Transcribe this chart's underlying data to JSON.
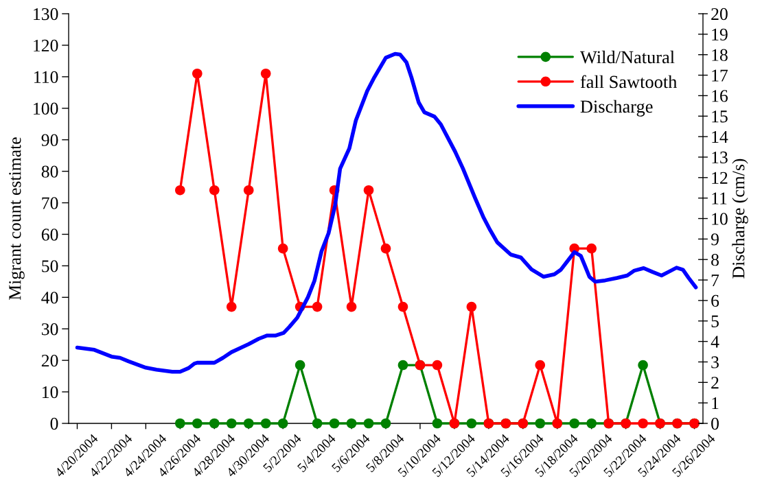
{
  "chart_data": {
    "type": "line",
    "ylabel": "Migrant count estimate",
    "y2label": "Discharge (cm/s)",
    "xlim": [
      "2004-04-19T12:00",
      "2004-05-26T12:00"
    ],
    "xticks": [
      {
        "value": "2004-04-20",
        "label": "4/20/2004"
      },
      {
        "value": "2004-04-22",
        "label": "4/22/2004"
      },
      {
        "value": "2004-04-24",
        "label": "4/24/2004"
      },
      {
        "value": "2004-04-26",
        "label": "4/26/2004"
      },
      {
        "value": "2004-04-28",
        "label": "4/28/2004"
      },
      {
        "value": "2004-04-30",
        "label": "4/30/2004"
      },
      {
        "value": "2004-05-02",
        "label": "5/2/2004"
      },
      {
        "value": "2004-05-04",
        "label": "5/4/2004"
      },
      {
        "value": "2004-05-06",
        "label": "5/6/2004"
      },
      {
        "value": "2004-05-08",
        "label": "5/8/2004"
      },
      {
        "value": "2004-05-10",
        "label": "5/10/2004"
      },
      {
        "value": "2004-05-12",
        "label": "5/12/2004"
      },
      {
        "value": "2004-05-14",
        "label": "5/14/2004"
      },
      {
        "value": "2004-05-16",
        "label": "5/16/2004"
      },
      {
        "value": "2004-05-18",
        "label": "5/18/2004"
      },
      {
        "value": "2004-05-20",
        "label": "5/20/2004"
      },
      {
        "value": "2004-05-22",
        "label": "5/22/2004"
      },
      {
        "value": "2004-05-24",
        "label": "5/24/2004"
      },
      {
        "value": "2004-05-26",
        "label": "5/26/2004"
      }
    ],
    "ylim": [
      0,
      130
    ],
    "yticks": [
      0,
      10,
      20,
      30,
      40,
      50,
      60,
      70,
      80,
      90,
      100,
      110,
      120,
      130
    ],
    "y2lim": [
      0,
      20
    ],
    "y2ticks": [
      0,
      1,
      2,
      3,
      4,
      5,
      6,
      7,
      8,
      9,
      10,
      11,
      12,
      13,
      14,
      15,
      16,
      17,
      18,
      19,
      20
    ],
    "legend": "top right",
    "marker": "circle",
    "line_style": "solid",
    "series": [
      {
        "name": "Wild/Natural",
        "color": "#008000",
        "x": [
          "2004-04-26",
          "2004-04-27",
          "2004-04-28",
          "2004-04-29",
          "2004-04-30",
          "2004-05-01",
          "2004-05-02",
          "2004-05-03",
          "2004-05-04",
          "2004-05-05",
          "2004-05-06",
          "2004-05-07",
          "2004-05-08",
          "2004-05-09",
          "2004-05-10",
          "2004-05-11",
          "2004-05-12",
          "2004-05-13",
          "2004-05-14",
          "2004-05-15",
          "2004-05-16",
          "2004-05-17",
          "2004-05-18",
          "2004-05-19",
          "2004-05-20",
          "2004-05-21",
          "2004-05-22",
          "2004-05-23",
          "2004-05-24",
          "2004-05-25",
          "2004-05-26"
        ],
        "values": [
          0,
          0,
          0,
          0,
          0,
          0,
          0,
          18.5,
          0,
          0,
          0,
          0,
          0,
          18.5,
          18.5,
          0,
          0,
          0,
          0,
          0,
          0,
          0,
          0,
          0,
          0,
          0,
          0,
          18.5,
          0,
          0,
          0
        ]
      },
      {
        "name": "fall Sawtooth",
        "color": "#ff0000",
        "x": [
          "2004-04-26",
          "2004-04-27",
          "2004-04-28",
          "2004-04-29",
          "2004-04-30",
          "2004-05-01",
          "2004-05-02",
          "2004-05-03",
          "2004-05-04",
          "2004-05-05",
          "2004-05-06",
          "2004-05-07",
          "2004-05-08",
          "2004-05-09",
          "2004-05-10",
          "2004-05-11",
          "2004-05-12",
          "2004-05-13",
          "2004-05-14",
          "2004-05-15",
          "2004-05-16",
          "2004-05-17",
          "2004-05-18",
          "2004-05-19",
          "2004-05-20",
          "2004-05-21",
          "2004-05-22",
          "2004-05-23",
          "2004-05-24",
          "2004-05-25",
          "2004-05-26"
        ],
        "values": [
          74,
          111,
          74,
          37,
          74,
          111,
          55.5,
          37,
          37,
          74,
          37,
          74,
          55.5,
          37,
          18.5,
          18.5,
          0,
          37,
          0,
          0,
          0,
          18.5,
          0,
          55.5,
          55.5,
          0,
          0,
          0,
          0,
          0,
          0
        ]
      },
      {
        "name": "Discharge",
        "color": "#0000ff",
        "axis": "y2",
        "marker": "none",
        "x": [
          "2004-04-20T00:00",
          "2004-04-21T00:00",
          "2004-04-22T00:00",
          "2004-04-22T12:00",
          "2004-04-23T00:00",
          "2004-04-24T00:00",
          "2004-04-24T15:00",
          "2004-04-25T13:00",
          "2004-04-26T00:00",
          "2004-04-26T12:00",
          "2004-04-26T20:00",
          "2004-04-27T00:00",
          "2004-04-28T00:00",
          "2004-04-28T12:00",
          "2004-04-29T00:00",
          "2004-04-30T00:00",
          "2004-04-30T14:00",
          "2004-05-01T02:00",
          "2004-05-01T14:00",
          "2004-05-02T01:00",
          "2004-05-02T09:00",
          "2004-05-02T20:00",
          "2004-05-03T11:00",
          "2004-05-03T20:00",
          "2004-05-04T06:00",
          "2004-05-04T16:00",
          "2004-05-05T01:00",
          "2004-05-05T08:00",
          "2004-05-05T21:00",
          "2004-05-06T06:00",
          "2004-05-06T22:00",
          "2004-05-07T08:00",
          "2004-05-08T00:00",
          "2004-05-08T13:00",
          "2004-05-08T20:00",
          "2004-05-09T05:00",
          "2004-05-09T12:00",
          "2004-05-09T22:00",
          "2004-05-10T06:00",
          "2004-05-10T20:00",
          "2004-05-11T05:00",
          "2004-05-12T01:00",
          "2004-05-12T12:00",
          "2004-05-13T05:00",
          "2004-05-13T17:00",
          "2004-05-14T02:00",
          "2004-05-14T12:00",
          "2004-05-15T07:00",
          "2004-05-15T21:00",
          "2004-05-16T12:00",
          "2004-05-17T05:00",
          "2004-05-17T20:00",
          "2004-05-18T05:00",
          "2004-05-18T16:00",
          "2004-05-19T00:00",
          "2004-05-19T09:00",
          "2004-05-19T14:00",
          "2004-05-19T21:00",
          "2004-05-20T05:00",
          "2004-05-20T19:00",
          "2004-05-21T12:00",
          "2004-05-22T02:00",
          "2004-05-22T12:00",
          "2004-05-23T01:00",
          "2004-05-23T13:00",
          "2004-05-24T02:00",
          "2004-05-24T12:00",
          "2004-05-24T23:00",
          "2004-05-25T08:00",
          "2004-05-25T16:00",
          "2004-05-26T02:00"
        ],
        "values": [
          3.7,
          3.59,
          3.26,
          3.2,
          3.03,
          2.72,
          2.62,
          2.52,
          2.52,
          2.7,
          2.92,
          2.96,
          2.96,
          3.2,
          3.48,
          3.87,
          4.13,
          4.29,
          4.29,
          4.42,
          4.71,
          5.16,
          6.16,
          6.95,
          8.4,
          9.3,
          10.64,
          12.43,
          13.43,
          14.78,
          16.23,
          16.9,
          17.85,
          18.04,
          18.01,
          17.62,
          16.88,
          15.67,
          15.19,
          14.98,
          14.6,
          13.27,
          12.44,
          11.0,
          10.04,
          9.44,
          8.84,
          8.24,
          8.1,
          7.52,
          7.16,
          7.28,
          7.5,
          8.0,
          8.36,
          8.18,
          7.76,
          7.16,
          6.92,
          6.98,
          7.1,
          7.22,
          7.46,
          7.58,
          7.4,
          7.22,
          7.4,
          7.6,
          7.5,
          7.1,
          6.64
        ]
      }
    ]
  }
}
